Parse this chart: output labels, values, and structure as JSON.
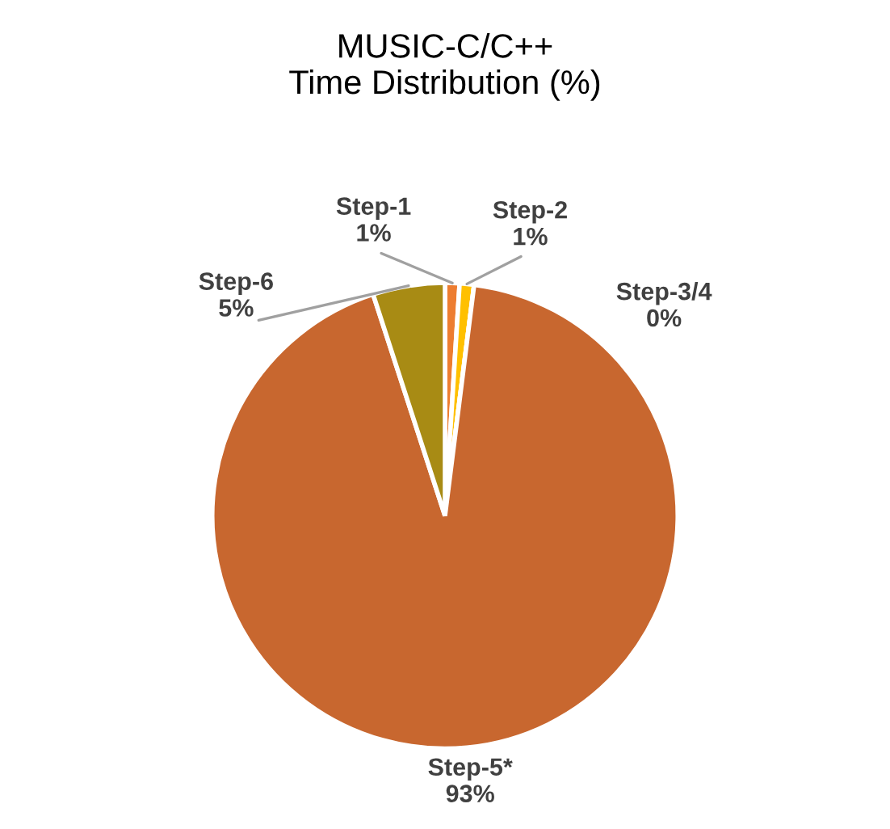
{
  "chart_data": {
    "type": "pie",
    "title": "MUSIC-C/C++\nTime Distribution (%)",
    "categories": [
      "Step-1",
      "Step-2",
      "Step-3/4",
      "Step-5*",
      "Step-6"
    ],
    "values": [
      1,
      1,
      0,
      93,
      5
    ],
    "value_labels": [
      "1%",
      "1%",
      "0%",
      "93%",
      "5%"
    ],
    "colors": [
      "#ed7d31",
      "#ffc000",
      "#a5a5a5",
      "#c8672f",
      "#a88b14"
    ]
  }
}
